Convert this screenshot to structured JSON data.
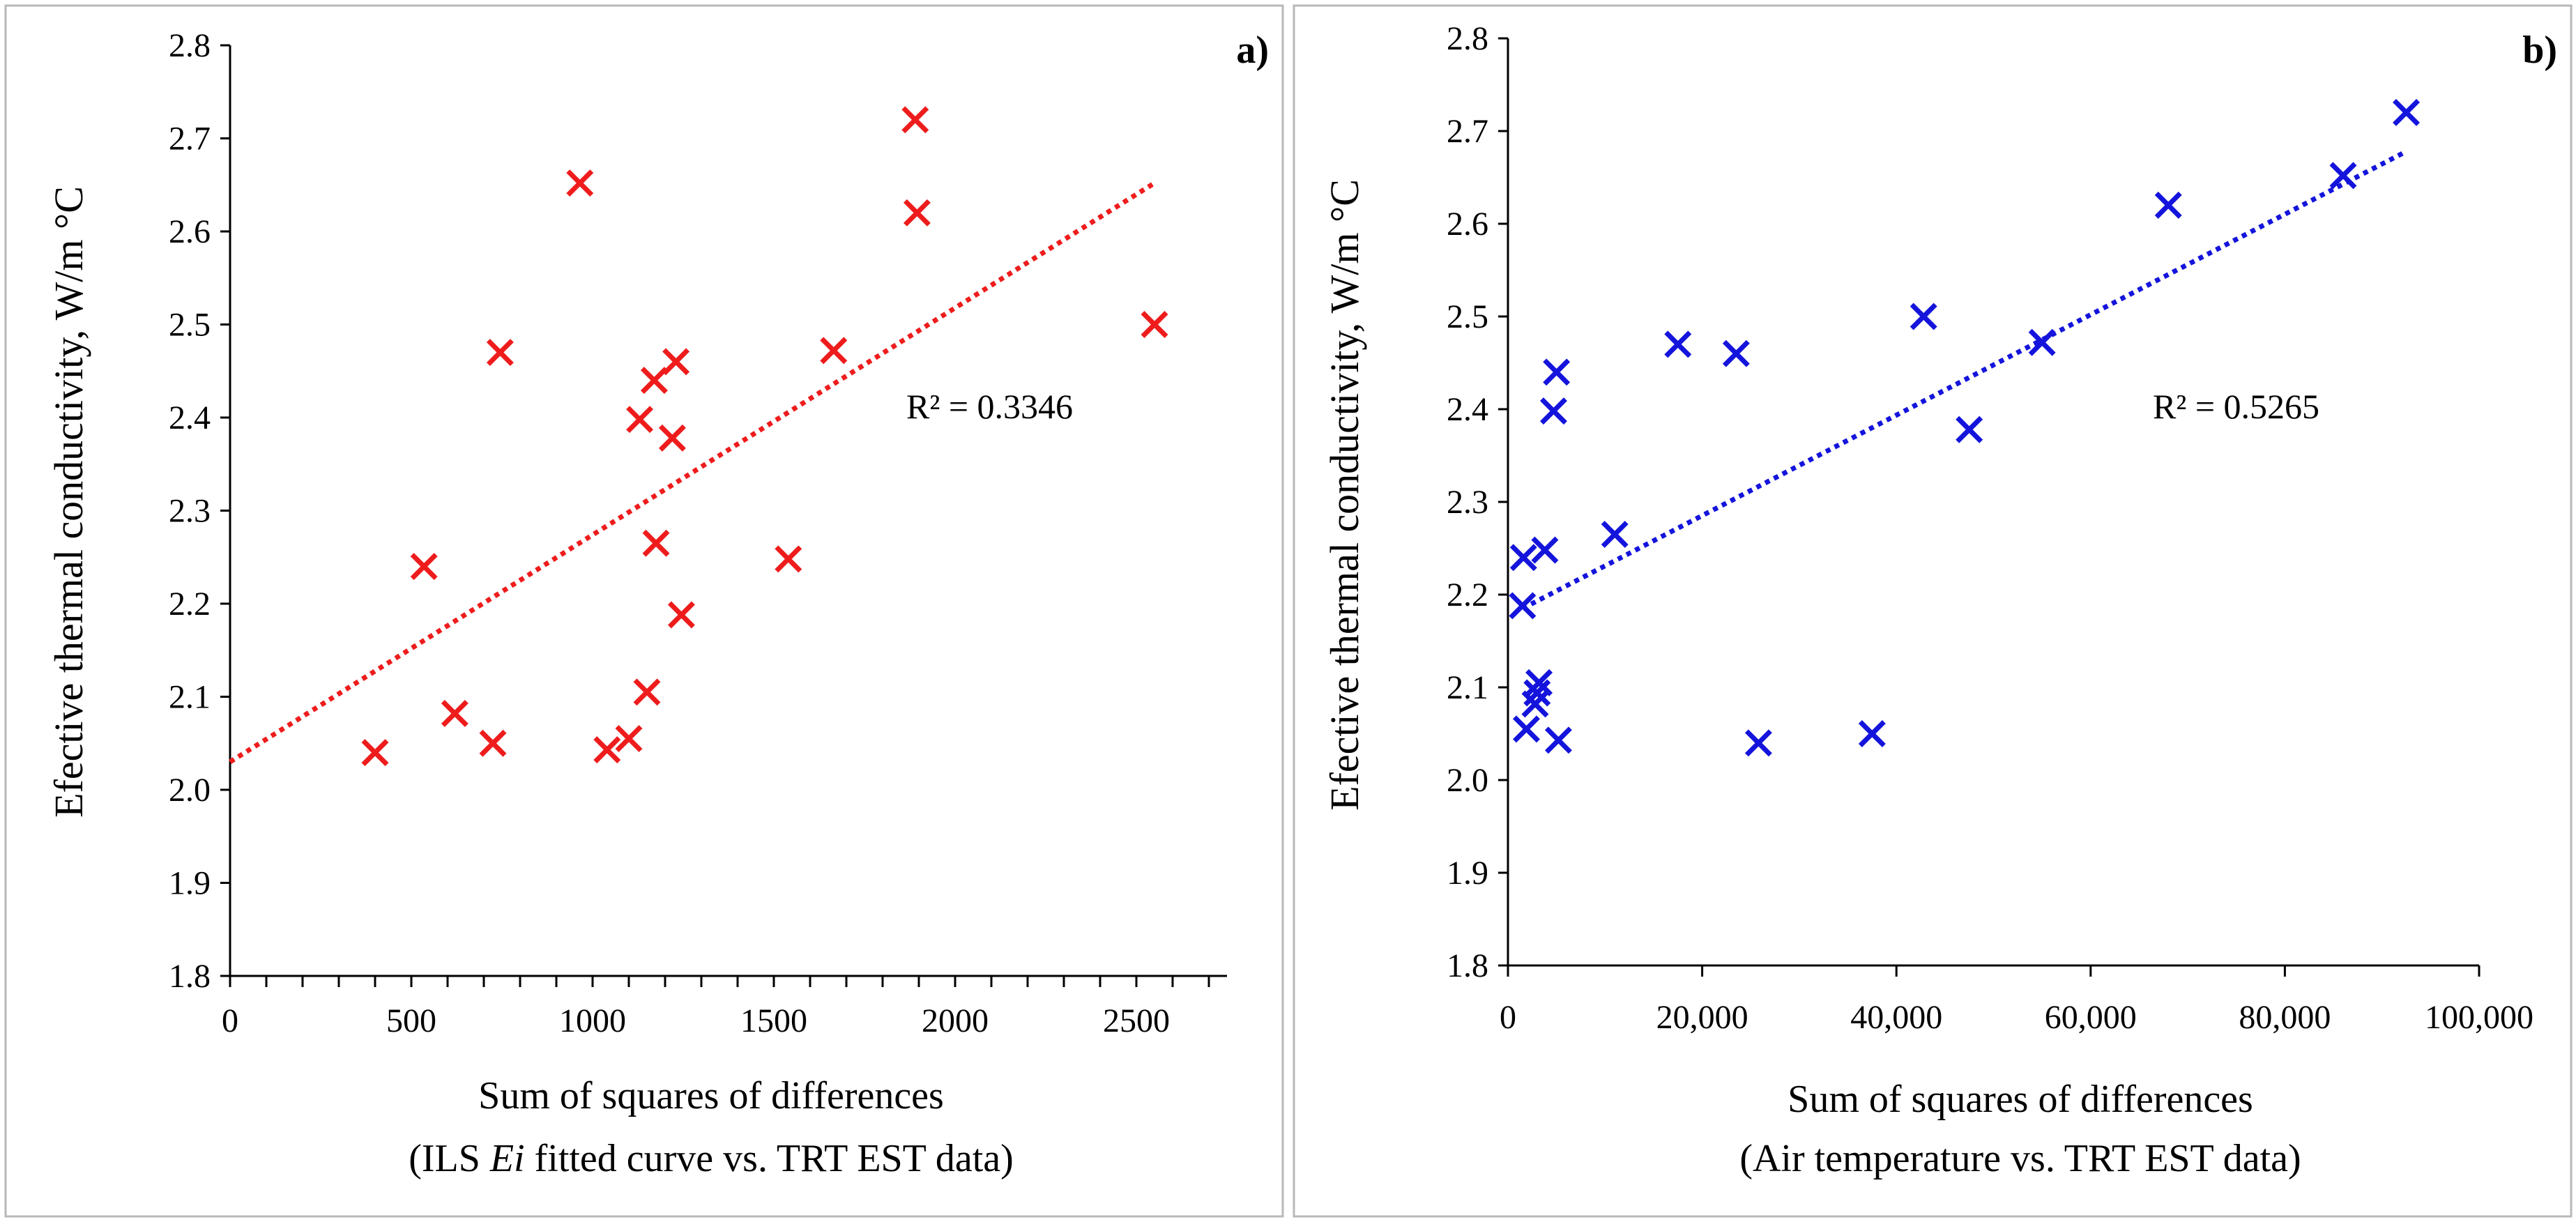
{
  "chart_data": [
    {
      "type": "scatter",
      "panel_label": "a)",
      "title": "",
      "xlabel": "Sum of squares of differences",
      "xlabel_line2_pre": "(ILS ",
      "xlabel_line2_italic": "Ei",
      "xlabel_line2_post": " fitted curve vs. TRT EST data)",
      "ylabel": "Efective thermal conductivity, W/m °C",
      "xlim": [
        0,
        2750
      ],
      "ylim": [
        1.8,
        2.8
      ],
      "xticks": [
        0,
        500,
        1000,
        1500,
        2000,
        2500
      ],
      "xtick_labels": [
        "0",
        "500",
        "1000",
        "1500",
        "2000",
        "2500"
      ],
      "x_minor_step": 100,
      "yticks": [
        1.8,
        1.9,
        2.0,
        2.1,
        2.2,
        2.3,
        2.4,
        2.5,
        2.6,
        2.7,
        2.8
      ],
      "ytick_labels": [
        "1.8",
        "1.9",
        "2.0",
        "2.1",
        "2.2",
        "2.3",
        "2.4",
        "2.5",
        "2.6",
        "2.7",
        "2.8"
      ],
      "color": "#ee1c1c",
      "marker": "x",
      "r_squared_text": "R² = 0.3346",
      "trendline": {
        "x": [
          0,
          2550
        ],
        "y": [
          2.03,
          2.652
        ],
        "style": "dotted"
      },
      "points": [
        {
          "x": 400,
          "y": 2.04
        },
        {
          "x": 535,
          "y": 2.24
        },
        {
          "x": 620,
          "y": 2.082
        },
        {
          "x": 725,
          "y": 2.05
        },
        {
          "x": 745,
          "y": 2.47
        },
        {
          "x": 965,
          "y": 2.652
        },
        {
          "x": 1040,
          "y": 2.043
        },
        {
          "x": 1100,
          "y": 2.055
        },
        {
          "x": 1130,
          "y": 2.398
        },
        {
          "x": 1150,
          "y": 2.105
        },
        {
          "x": 1170,
          "y": 2.44
        },
        {
          "x": 1175,
          "y": 2.265
        },
        {
          "x": 1220,
          "y": 2.378
        },
        {
          "x": 1230,
          "y": 2.46
        },
        {
          "x": 1245,
          "y": 2.188
        },
        {
          "x": 1540,
          "y": 2.248
        },
        {
          "x": 1665,
          "y": 2.472
        },
        {
          "x": 1890,
          "y": 2.72
        },
        {
          "x": 1895,
          "y": 2.62
        },
        {
          "x": 2550,
          "y": 2.5
        }
      ]
    },
    {
      "type": "scatter",
      "panel_label": "b)",
      "title": "",
      "xlabel": "Sum of squares of differences",
      "xlabel_line2_pre": "(Air temperature vs. TRT EST data)",
      "xlabel_line2_italic": "",
      "xlabel_line2_post": "",
      "ylabel": "Efective thermal conductivity, W/m °C",
      "xlim": [
        0,
        100000
      ],
      "ylim": [
        1.8,
        2.8
      ],
      "xticks": [
        0,
        20000,
        40000,
        60000,
        80000,
        100000
      ],
      "xtick_labels": [
        "0",
        "20,000",
        "40,000",
        "60,000",
        "80,000",
        "100,000"
      ],
      "x_minor_step": 0,
      "yticks": [
        1.8,
        1.9,
        2.0,
        2.1,
        2.2,
        2.3,
        2.4,
        2.5,
        2.6,
        2.7,
        2.8
      ],
      "ytick_labels": [
        "1.8",
        "1.9",
        "2.0",
        "2.1",
        "2.2",
        "2.3",
        "2.4",
        "2.5",
        "2.6",
        "2.7",
        "2.8"
      ],
      "color": "#1414dc",
      "marker": "x",
      "r_squared_text": "R² = 0.5265",
      "trendline": {
        "x": [
          1500,
          92500
        ],
        "y": [
          2.185,
          2.678
        ],
        "style": "dotted"
      },
      "points": [
        {
          "x": 1500,
          "y": 2.188
        },
        {
          "x": 1600,
          "y": 2.24
        },
        {
          "x": 1900,
          "y": 2.055
        },
        {
          "x": 2800,
          "y": 2.082
        },
        {
          "x": 3000,
          "y": 2.094
        },
        {
          "x": 3200,
          "y": 2.105
        },
        {
          "x": 3800,
          "y": 2.248
        },
        {
          "x": 4700,
          "y": 2.398
        },
        {
          "x": 5000,
          "y": 2.44
        },
        {
          "x": 5200,
          "y": 2.043
        },
        {
          "x": 11000,
          "y": 2.265
        },
        {
          "x": 17500,
          "y": 2.47
        },
        {
          "x": 23500,
          "y": 2.46
        },
        {
          "x": 25800,
          "y": 2.04
        },
        {
          "x": 37500,
          "y": 2.05
        },
        {
          "x": 42800,
          "y": 2.5
        },
        {
          "x": 47500,
          "y": 2.378
        },
        {
          "x": 55000,
          "y": 2.472
        },
        {
          "x": 68000,
          "y": 2.62
        },
        {
          "x": 86000,
          "y": 2.652
        },
        {
          "x": 92500,
          "y": 2.72
        }
      ]
    }
  ]
}
